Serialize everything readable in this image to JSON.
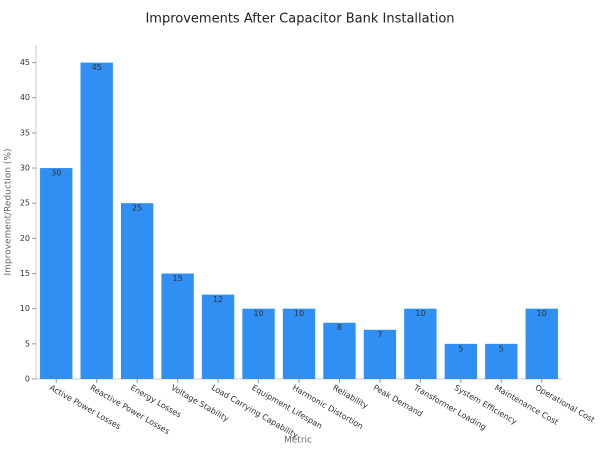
{
  "chart_data": {
    "type": "bar",
    "title": "Improvements After Capacitor Bank Installation",
    "x_label": "Metric",
    "y_label": "Improvement/Reduction (%)",
    "categories": [
      "Active Power Losses",
      "Reactive Power Losses",
      "Energy Losses",
      "Voltage Stability",
      "Load Carrying Capability",
      "Equipment Lifespan",
      "Harmonic Distortion",
      "Reliability",
      "Peak Demand",
      "Transformer Loading",
      "System Efficiency",
      "Maintenance Cost",
      "Operational Cost"
    ],
    "values": [
      30,
      45,
      25,
      15,
      12,
      10,
      10,
      8,
      7,
      10,
      5,
      5,
      10
    ],
    "color": "#2f8ff2",
    "ylim": [
      0,
      47.5
    ],
    "yticks": [
      0,
      5,
      10,
      15,
      20,
      25,
      30,
      35,
      40,
      45
    ],
    "grid": false
  }
}
